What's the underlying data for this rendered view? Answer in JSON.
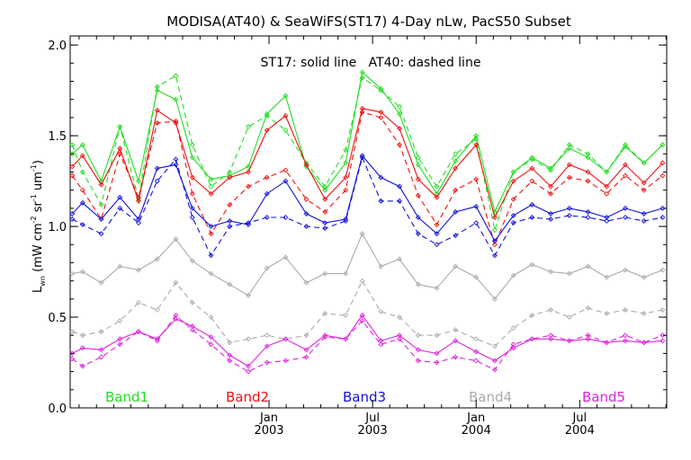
{
  "chart_data": {
    "type": "line",
    "title": "MODISA(AT40) & SeaWiFS(ST17) 4-Day nLw, PacS50 Subset",
    "annotation": "ST17: solid line   AT40: dashed line",
    "ylabel": "L_wn (mW cm^-2 sr^-1 um^-1)",
    "ylabel_main": "L",
    "ylabel_sub": "wn",
    "ylabel_rest": " (mW cm",
    "ylabel_sup1": "-2",
    "ylabel_mid": " sr",
    "ylabel_sup2": "-1",
    "ylabel_mid2": " um",
    "ylabel_sup3": "-1",
    "ylabel_end": ")",
    "xlabel": "",
    "xlim": [
      2002.04,
      2004.92
    ],
    "ylim": [
      0.0,
      2.05
    ],
    "y_ticks": [
      0.0,
      0.5,
      1.0,
      1.5,
      2.0
    ],
    "y_tick_labels": [
      "0.0",
      "0.5",
      "1.0",
      "1.5",
      "2.0"
    ],
    "x_ticks": [
      {
        "x": 2003.0,
        "top": "Jan",
        "bottom": "2003"
      },
      {
        "x": 2003.5,
        "top": "Jul",
        "bottom": "2003"
      },
      {
        "x": 2004.0,
        "top": "Jan",
        "bottom": "2004"
      },
      {
        "x": 2004.5,
        "top": "Jul",
        "bottom": "2004"
      }
    ],
    "x_minor_ticks": [
      2002.083,
      2002.167,
      2002.25,
      2002.333,
      2002.417,
      2002.5,
      2002.583,
      2002.667,
      2002.75,
      2002.833,
      2002.917,
      2003.083,
      2003.167,
      2003.25,
      2003.333,
      2003.417,
      2003.583,
      2003.667,
      2003.75,
      2003.833,
      2003.917,
      2004.083,
      2004.167,
      2004.25,
      2004.333,
      2004.417,
      2004.583,
      2004.667,
      2004.75,
      2004.833,
      2004.917
    ],
    "x": [
      2002.05,
      2002.1,
      2002.19,
      2002.28,
      2002.37,
      2002.46,
      2002.55,
      2002.63,
      2002.72,
      2002.81,
      2002.9,
      2002.99,
      2003.08,
      2003.18,
      2003.27,
      2003.37,
      2003.45,
      2003.54,
      2003.63,
      2003.72,
      2003.81,
      2003.9,
      2004.0,
      2004.09,
      2004.18,
      2004.27,
      2004.36,
      2004.45,
      2004.54,
      2004.63,
      2004.72,
      2004.81,
      2004.9
    ],
    "series": [
      {
        "name": "Band1",
        "color": "#22dd22",
        "style": "solid",
        "values": [
          1.4,
          1.45,
          1.25,
          1.55,
          1.25,
          1.75,
          1.7,
          1.38,
          1.26,
          1.28,
          1.33,
          1.62,
          1.72,
          1.33,
          1.2,
          1.35,
          1.85,
          1.76,
          1.62,
          1.34,
          1.18,
          1.36,
          1.5,
          1.08,
          1.3,
          1.38,
          1.32,
          1.43,
          1.38,
          1.3,
          1.44,
          1.35,
          1.45
        ]
      },
      {
        "name": "Band1",
        "color": "#22dd22",
        "style": "dashed",
        "values": [
          1.45,
          1.3,
          1.12,
          1.55,
          1.15,
          1.77,
          1.83,
          1.45,
          1.22,
          1.3,
          1.55,
          1.61,
          1.53,
          1.35,
          1.22,
          1.42,
          1.82,
          1.75,
          1.66,
          1.38,
          1.22,
          1.4,
          1.48,
          0.98,
          1.3,
          1.37,
          1.31,
          1.45,
          1.4,
          1.3,
          1.45,
          1.35,
          1.45
        ]
      },
      {
        "name": "Band2",
        "color": "#ee1111",
        "style": "solid",
        "values": [
          1.33,
          1.39,
          1.23,
          1.43,
          1.14,
          1.64,
          1.57,
          1.27,
          1.18,
          1.27,
          1.3,
          1.53,
          1.61,
          1.34,
          1.15,
          1.27,
          1.65,
          1.63,
          1.54,
          1.26,
          1.16,
          1.32,
          1.45,
          1.05,
          1.25,
          1.32,
          1.22,
          1.34,
          1.3,
          1.22,
          1.34,
          1.24,
          1.35
        ]
      },
      {
        "name": "Band2",
        "color": "#ee1111",
        "style": "dashed",
        "values": [
          1.28,
          1.2,
          1.04,
          1.4,
          1.16,
          1.57,
          1.58,
          1.18,
          0.96,
          1.12,
          1.22,
          1.27,
          1.31,
          1.15,
          1.08,
          1.2,
          1.63,
          1.6,
          1.45,
          1.17,
          1.01,
          1.2,
          1.26,
          0.9,
          1.15,
          1.25,
          1.18,
          1.27,
          1.25,
          1.18,
          1.28,
          1.2,
          1.28
        ]
      },
      {
        "name": "Band3",
        "color": "#1111dd",
        "style": "solid",
        "values": [
          1.07,
          1.13,
          1.04,
          1.16,
          1.04,
          1.32,
          1.34,
          1.1,
          1.0,
          1.03,
          1.01,
          1.18,
          1.25,
          1.07,
          1.02,
          1.04,
          1.39,
          1.27,
          1.22,
          1.05,
          0.96,
          1.08,
          1.11,
          0.92,
          1.06,
          1.12,
          1.07,
          1.1,
          1.08,
          1.05,
          1.1,
          1.07,
          1.1
        ]
      },
      {
        "name": "Band3",
        "color": "#1111dd",
        "style": "dashed",
        "values": [
          1.04,
          1.01,
          0.96,
          1.1,
          1.02,
          1.25,
          1.37,
          1.05,
          0.84,
          1.0,
          1.02,
          1.05,
          1.05,
          1.0,
          0.99,
          1.03,
          1.38,
          1.14,
          1.14,
          0.96,
          0.9,
          0.95,
          1.02,
          0.84,
          1.02,
          1.05,
          1.04,
          1.06,
          1.05,
          1.03,
          1.05,
          1.03,
          1.05
        ]
      },
      {
        "name": "Band4",
        "color": "#aaaaaa",
        "style": "solid",
        "values": [
          0.74,
          0.75,
          0.69,
          0.78,
          0.76,
          0.82,
          0.93,
          0.81,
          0.74,
          0.68,
          0.62,
          0.77,
          0.83,
          0.69,
          0.74,
          0.74,
          0.96,
          0.78,
          0.82,
          0.68,
          0.66,
          0.78,
          0.72,
          0.6,
          0.73,
          0.79,
          0.75,
          0.74,
          0.78,
          0.72,
          0.76,
          0.72,
          0.76
        ]
      },
      {
        "name": "Band4",
        "color": "#aaaaaa",
        "style": "dashed",
        "values": [
          0.42,
          0.4,
          0.42,
          0.48,
          0.58,
          0.54,
          0.69,
          0.58,
          0.5,
          0.36,
          0.38,
          0.4,
          0.38,
          0.4,
          0.52,
          0.51,
          0.7,
          0.53,
          0.5,
          0.4,
          0.4,
          0.43,
          0.38,
          0.34,
          0.44,
          0.51,
          0.54,
          0.5,
          0.55,
          0.52,
          0.54,
          0.52,
          0.54
        ]
      },
      {
        "name": "Band5",
        "color": "#dd22dd",
        "style": "solid",
        "values": [
          0.3,
          0.33,
          0.32,
          0.38,
          0.42,
          0.38,
          0.49,
          0.45,
          0.39,
          0.29,
          0.23,
          0.34,
          0.38,
          0.32,
          0.4,
          0.38,
          0.51,
          0.37,
          0.4,
          0.32,
          0.3,
          0.37,
          0.31,
          0.26,
          0.33,
          0.38,
          0.38,
          0.37,
          0.38,
          0.36,
          0.37,
          0.36,
          0.37
        ]
      },
      {
        "name": "Band5",
        "color": "#dd22dd",
        "style": "dashed",
        "values": [
          0.27,
          0.23,
          0.28,
          0.35,
          0.42,
          0.37,
          0.51,
          0.43,
          0.35,
          0.26,
          0.2,
          0.25,
          0.26,
          0.28,
          0.39,
          0.38,
          0.48,
          0.35,
          0.38,
          0.26,
          0.25,
          0.28,
          0.26,
          0.21,
          0.35,
          0.38,
          0.4,
          0.37,
          0.4,
          0.36,
          0.4,
          0.36,
          0.4
        ]
      }
    ],
    "legend": [
      {
        "label": "Band1",
        "color": "#22dd22"
      },
      {
        "label": "Band2",
        "color": "#ee1111"
      },
      {
        "label": "Band3",
        "color": "#1111dd"
      },
      {
        "label": "Band4",
        "color": "#aaaaaa"
      },
      {
        "label": "Band5",
        "color": "#dd22dd"
      }
    ],
    "legend_placement": "bottom inside plot",
    "grid": false
  }
}
